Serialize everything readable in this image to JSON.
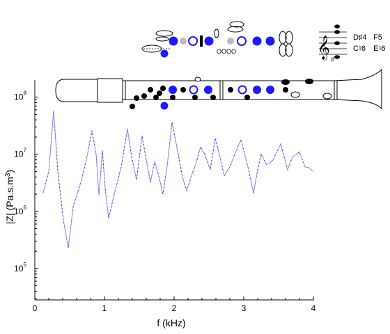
{
  "chart_data": {
    "type": "line",
    "title": "",
    "xlabel": "f (kHz)",
    "ylabel": "|Z| (Pa.s.m3)",
    "xlim": [
      0,
      4
    ],
    "ylim_log10": [
      4.45,
      8.3
    ],
    "yscale": "log",
    "grid": false,
    "x_ticks": [
      0,
      1,
      2,
      3,
      4
    ],
    "x_tick_labels": [
      "0",
      "1",
      "2",
      "3",
      "4"
    ],
    "y_ticks_log10": [
      5,
      6,
      7,
      8
    ],
    "y_tick_labels": [
      {
        "base": "10",
        "exp": "5"
      },
      {
        "base": "10",
        "exp": "6"
      },
      {
        "base": "10",
        "exp": "7"
      },
      {
        "base": "10",
        "exp": "8"
      }
    ],
    "series": [
      {
        "color": "#0000cc",
        "style": "dotted",
        "points": [
          [
            0.12,
            2100000.0
          ],
          [
            0.2,
            5000000.0
          ],
          [
            0.27,
            58000000.0
          ],
          [
            0.33,
            5000000.0
          ],
          [
            0.41,
            700000.0
          ],
          [
            0.48,
            230000.0
          ],
          [
            0.55,
            1200000.0
          ],
          [
            0.66,
            3200000.0
          ],
          [
            0.74,
            8000000.0
          ],
          [
            0.82,
            26000000.0
          ],
          [
            0.88,
            10000000.0
          ],
          [
            0.92,
            1900000.0
          ],
          [
            0.97,
            11500000.0
          ],
          [
            1.01,
            2600000.0
          ],
          [
            1.06,
            750000.0
          ],
          [
            1.14,
            2000000.0
          ],
          [
            1.24,
            6000000.0
          ],
          [
            1.33,
            28000000.0
          ],
          [
            1.39,
            9000000.0
          ],
          [
            1.46,
            3600000.0
          ],
          [
            1.54,
            21000000.0
          ],
          [
            1.6,
            8000000.0
          ],
          [
            1.66,
            3200000.0
          ],
          [
            1.72,
            7400000.0
          ],
          [
            1.78,
            4200000.0
          ],
          [
            1.84,
            2000000.0
          ],
          [
            1.9,
            6200000.0
          ],
          [
            1.97,
            36000000.0
          ],
          [
            2.06,
            10000000.0
          ],
          [
            2.12,
            4000000.0
          ],
          [
            2.18,
            2300000.0
          ],
          [
            2.26,
            4600000.0
          ],
          [
            2.31,
            6600000.0
          ],
          [
            2.38,
            13500000.0
          ],
          [
            2.44,
            10000000.0
          ],
          [
            2.52,
            5400000.0
          ],
          [
            2.59,
            19000000.0
          ],
          [
            2.64,
            11000000.0
          ],
          [
            2.72,
            4200000.0
          ],
          [
            2.8,
            6000000.0
          ],
          [
            2.87,
            10000000.0
          ],
          [
            2.96,
            18000000.0
          ],
          [
            3.06,
            6000000.0
          ],
          [
            3.14,
            2100000.0
          ],
          [
            3.2,
            5400000.0
          ],
          [
            3.25,
            10000000.0
          ],
          [
            3.33,
            6500000.0
          ],
          [
            3.42,
            8000000.0
          ],
          [
            3.53,
            15000000.0
          ],
          [
            3.63,
            5400000.0
          ],
          [
            3.7,
            9000000.0
          ],
          [
            3.8,
            11000000.0
          ],
          [
            3.88,
            6000000.0
          ],
          [
            3.94,
            5800000.0
          ],
          [
            4.0,
            5000000.0
          ]
        ]
      }
    ],
    "annotations": {
      "fingering_labels": [
        "D♯4",
        "F5",
        "C♮6",
        "E♮6"
      ]
    }
  }
}
